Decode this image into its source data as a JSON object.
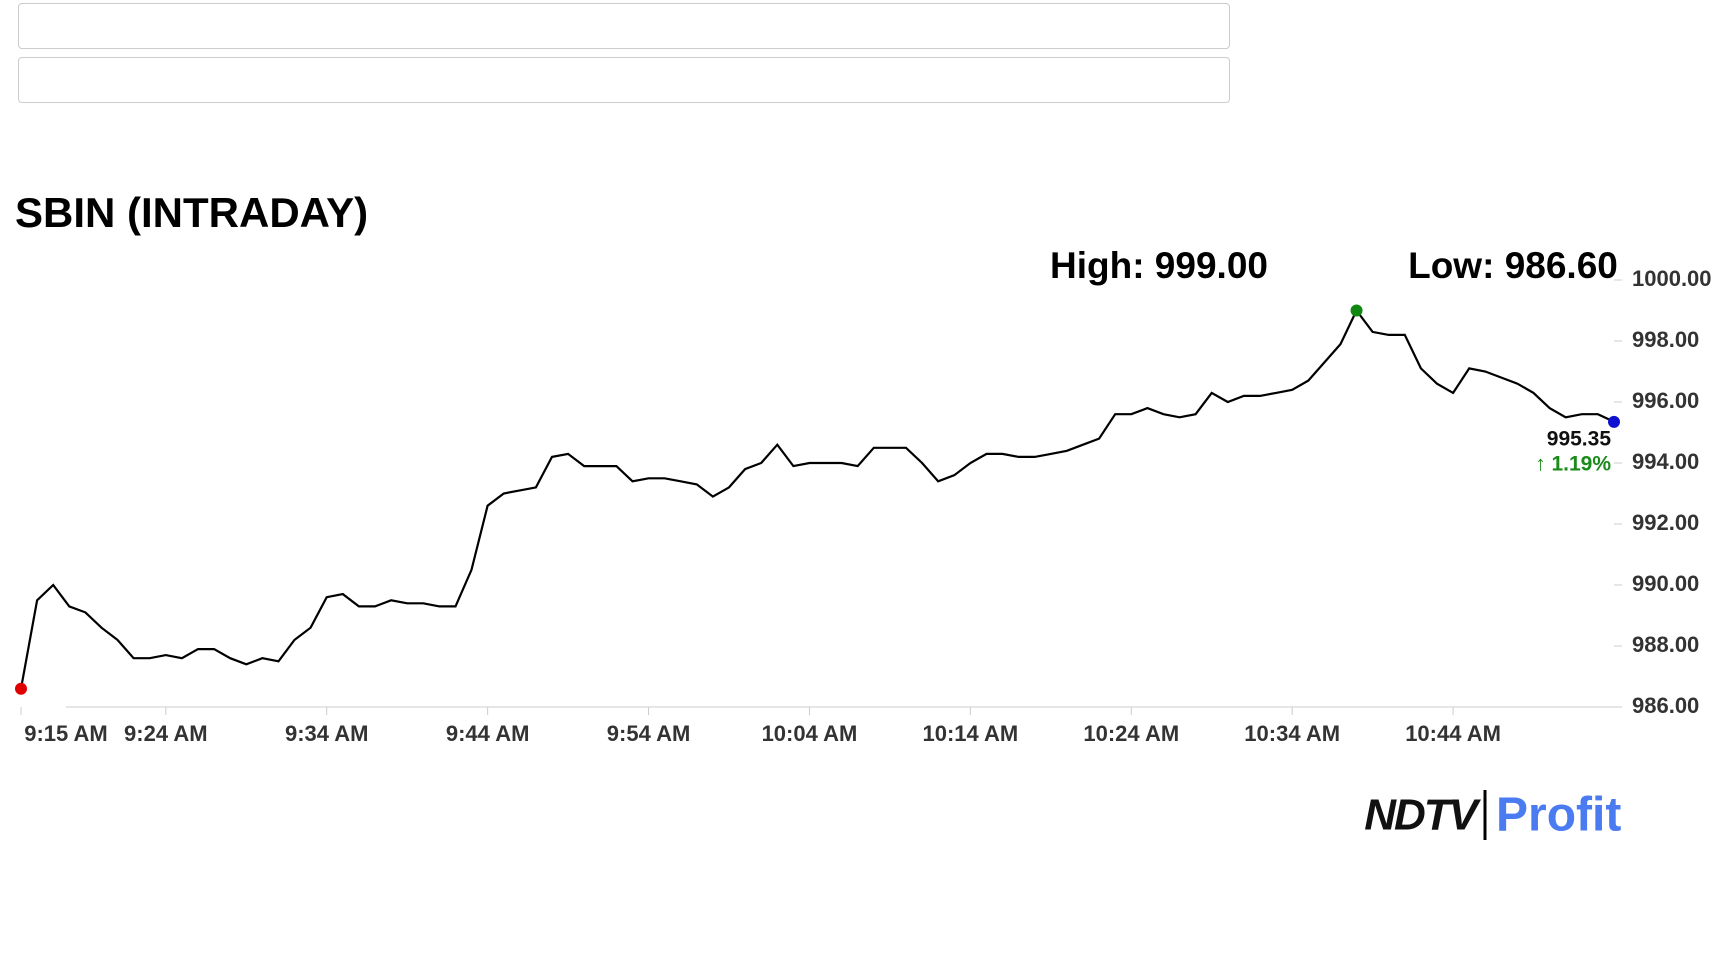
{
  "chart_data": {
    "type": "line",
    "title": "SBIN (INTRADAY)",
    "annotations": [
      "High: 999.00",
      "Low: 986.60",
      "995.35",
      "↑ 1.19%"
    ],
    "color": "#000000",
    "x": [
      555,
      556,
      557,
      558,
      559,
      560,
      561,
      562,
      563,
      564,
      565,
      566,
      567,
      568,
      569,
      570,
      571,
      572,
      573,
      574,
      575,
      576,
      577,
      578,
      579,
      580,
      581,
      582,
      583,
      584,
      585,
      586,
      587,
      588,
      589,
      590,
      591,
      592,
      593,
      594,
      595,
      596,
      597,
      598,
      599,
      600,
      601,
      602,
      603,
      604,
      605,
      606,
      607,
      608,
      609,
      610,
      611,
      612,
      613,
      614,
      615,
      616,
      617,
      618,
      619,
      620,
      621,
      622,
      623,
      624,
      625,
      626,
      627,
      628,
      629,
      630,
      631,
      632,
      633,
      634,
      635,
      636,
      637,
      638,
      639,
      640,
      641,
      642,
      643,
      644,
      645,
      646,
      647,
      648,
      649,
      650,
      651,
      652,
      653,
      654
    ],
    "values": [
      986.6,
      989.5,
      990.0,
      989.3,
      989.1,
      988.6,
      988.2,
      987.6,
      987.6,
      987.7,
      987.6,
      987.9,
      987.9,
      987.6,
      987.4,
      987.6,
      987.5,
      988.2,
      988.6,
      989.6,
      989.7,
      989.3,
      989.3,
      989.5,
      989.4,
      989.4,
      989.3,
      989.3,
      990.5,
      992.6,
      993.0,
      993.1,
      993.2,
      994.2,
      994.3,
      993.9,
      993.9,
      993.9,
      993.4,
      993.5,
      993.5,
      993.4,
      993.3,
      992.9,
      993.2,
      993.8,
      994.0,
      994.6,
      993.9,
      994.0,
      994.0,
      994.0,
      993.9,
      994.5,
      994.5,
      994.5,
      994.0,
      993.4,
      993.6,
      994.0,
      994.3,
      994.3,
      994.2,
      994.2,
      994.3,
      994.4,
      994.6,
      994.8,
      995.6,
      995.6,
      995.8,
      995.6,
      995.5,
      995.6,
      996.3,
      996.0,
      996.2,
      996.2,
      996.3,
      996.4,
      996.7,
      997.3,
      997.9,
      999.0,
      998.3,
      998.2,
      998.2,
      997.1,
      996.6,
      996.3,
      997.1,
      997.0,
      996.8,
      996.6,
      996.3,
      995.8,
      995.5,
      995.6,
      995.6,
      995.35
    ],
    "xlim": [
      555,
      654
    ],
    "xticks": [
      {
        "value": 555,
        "label": "9:15 AM"
      },
      {
        "value": 564,
        "label": "9:24 AM"
      },
      {
        "value": 574,
        "label": "9:34 AM"
      },
      {
        "value": 584,
        "label": "9:44 AM"
      },
      {
        "value": 594,
        "label": "9:54 AM"
      },
      {
        "value": 604,
        "label": "10:04 AM"
      },
      {
        "value": 614,
        "label": "10:14 AM"
      },
      {
        "value": 624,
        "label": "10:24 AM"
      },
      {
        "value": 634,
        "label": "10:34 AM"
      },
      {
        "value": 644,
        "label": "10:44 AM"
      }
    ],
    "ylim": [
      986,
      1000
    ],
    "yticks": [
      {
        "value": 986,
        "label": "986.00"
      },
      {
        "value": 988,
        "label": "988.00"
      },
      {
        "value": 990,
        "label": "990.00"
      },
      {
        "value": 992,
        "label": "992.00"
      },
      {
        "value": 994,
        "label": "994.00"
      },
      {
        "value": 996,
        "label": "996.00"
      },
      {
        "value": 998,
        "label": "998.00"
      },
      {
        "value": 1000,
        "label": "1000.00"
      }
    ],
    "grid": false
  },
  "logo": {
    "left": "NDTV",
    "right": "Profit"
  }
}
